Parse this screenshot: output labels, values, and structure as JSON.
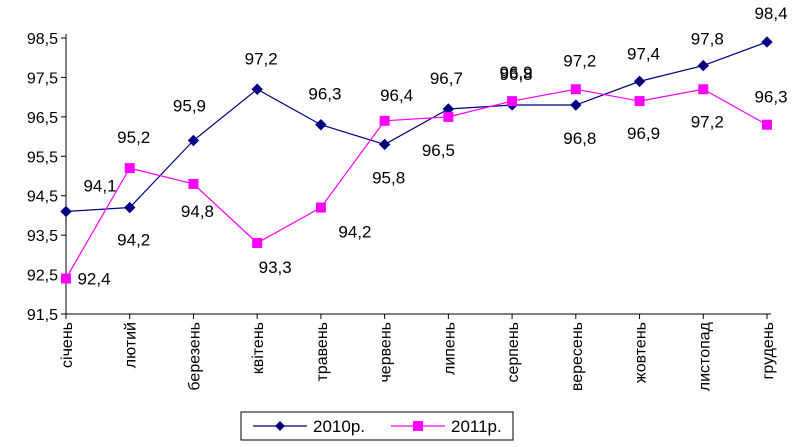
{
  "chart_data": {
    "type": "line",
    "title": "",
    "xlabel": "",
    "ylabel": "",
    "categories": [
      "січень",
      "лютий",
      "березень",
      "квітень",
      "травень",
      "червень",
      "липень",
      "серпень",
      "вересень",
      "жовтень",
      "листопад",
      "грудень"
    ],
    "ylim": [
      91.5,
      98.5
    ],
    "y_ticks": [
      "91,5",
      "92,5",
      "93,5",
      "94,5",
      "95,5",
      "96,5",
      "97,5",
      "98,5"
    ],
    "grid": false,
    "legend_position": "bottom",
    "series": [
      {
        "name": "2010р.",
        "color": "#000080",
        "marker": "diamond",
        "values": [
          94.1,
          94.2,
          95.9,
          97.2,
          96.3,
          95.8,
          96.7,
          96.8,
          96.8,
          97.4,
          97.8,
          98.4
        ],
        "labels": [
          "94,1",
          "94,2",
          "95,9",
          "97,2",
          "96,3",
          "95,8",
          "96,7",
          "96,8",
          "96,8",
          "97,4",
          "97,8",
          "98,4"
        ]
      },
      {
        "name": "2011р.",
        "color": "#FF00FF",
        "marker": "square",
        "values": [
          92.4,
          95.2,
          94.8,
          93.3,
          94.2,
          96.4,
          96.5,
          96.9,
          97.2,
          96.9,
          97.2,
          96.3
        ],
        "labels": [
          "92,4",
          "95,2",
          "94,8",
          "93,3",
          "94,2",
          "96,4",
          "96,5",
          "96,9",
          "97,2",
          "96,9",
          "97,2",
          "96,3"
        ]
      }
    ]
  }
}
